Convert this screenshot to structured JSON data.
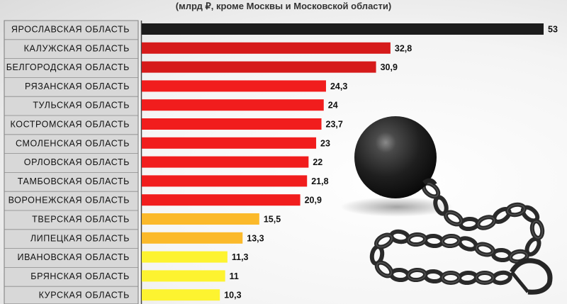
{
  "chart_data": {
    "type": "bar",
    "orientation": "horizontal",
    "title": "",
    "subtitle": "(млрд ₽, кроме Москвы и Московской области)",
    "categories": [
      "ЯРОСЛАВСКАЯ ОБЛАСТЬ",
      "КАЛУЖСКАЯ ОБЛАСТЬ",
      "БЕЛГОРОДСКАЯ ОБЛАСТЬ",
      "РЯЗАНСКАЯ ОБЛАСТЬ",
      "ТУЛЬСКАЯ ОБЛАСТЬ",
      "КОСТРОМСКАЯ ОБЛАСТЬ",
      "СМОЛЕНСКАЯ ОБЛАСТЬ",
      "ОРЛОВСКАЯ ОБЛАСТЬ",
      "ТАМБОВСКАЯ ОБЛАСТЬ",
      "ВОРОНЕЖСКАЯ ОБЛАСТЬ",
      "ТВЕРСКАЯ ОБЛАСТЬ",
      "ЛИПЕЦКАЯ ОБЛАСТЬ",
      "ИВАНОВСКАЯ ОБЛАСТЬ",
      "БРЯНСКАЯ ОБЛАСТЬ",
      "КУРСКАЯ ОБЛАСТЬ"
    ],
    "values": [
      53,
      32.8,
      30.9,
      24.3,
      24,
      23.7,
      23,
      22,
      21.8,
      20.9,
      15.5,
      13.3,
      11.3,
      11,
      10.3
    ],
    "value_labels": [
      "53",
      "32,8",
      "30,9",
      "24,3",
      "24",
      "23,7",
      "23",
      "22",
      "21,8",
      "20,9",
      "15,5",
      "13,3",
      "11,3",
      "11",
      "10,3"
    ],
    "bar_colors": [
      "#1c1c1c",
      "#d61a1a",
      "#d61a1a",
      "#f11d1d",
      "#f11d1d",
      "#f11d1d",
      "#f11d1d",
      "#f11d1d",
      "#f11d1d",
      "#f11d1d",
      "#fbb92a",
      "#fbb92a",
      "#fdf330",
      "#fdf330",
      "#fdf330"
    ],
    "xlim": [
      0,
      53
    ],
    "grid": false,
    "legend": "none"
  }
}
